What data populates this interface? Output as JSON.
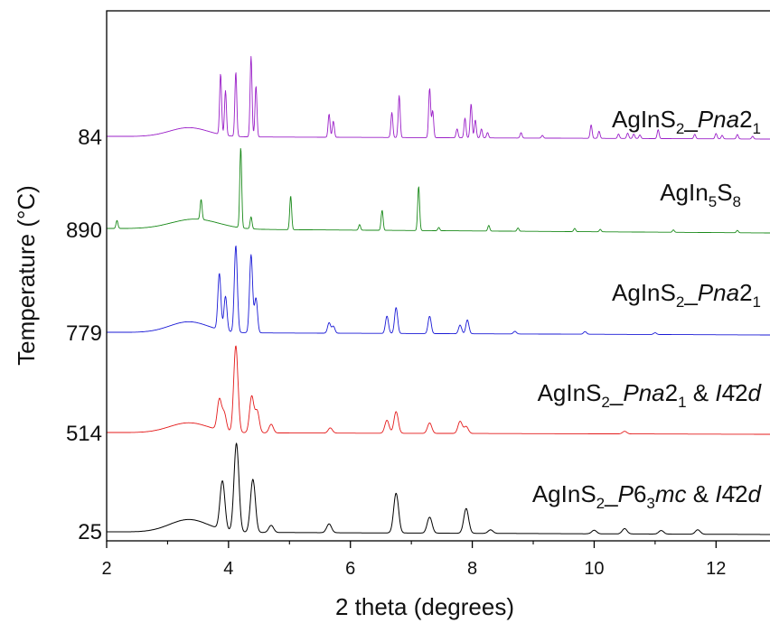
{
  "chart_data": {
    "type": "line",
    "xlabel": "2 theta (degrees)",
    "ylabel": "Temperature (°C)",
    "xlim": [
      2,
      12.9
    ],
    "x_ticks": [
      "2",
      "4",
      "6",
      "8",
      "10",
      "12"
    ],
    "x_tick_values": [
      2,
      4,
      6,
      8,
      10,
      12
    ],
    "grid": false,
    "legend": "none",
    "series": [
      {
        "name": "25",
        "y_label": "25",
        "color": "#000000",
        "label_parts": [
          {
            "t": "AgInS"
          },
          {
            "t": "2",
            "sub": true
          },
          {
            "t": "_"
          },
          {
            "t": "P",
            "i": true
          },
          {
            "t": "6"
          },
          {
            "t": "3",
            "sub": true
          },
          {
            "t": "mc",
            "i": true
          },
          {
            "t": " & "
          },
          {
            "t": "I",
            "i": true
          },
          {
            "t": "4",
            "bar": true
          },
          {
            "t": "2"
          },
          {
            "t": "d",
            "i": true
          }
        ],
        "peaks": [
          [
            3.9,
            0.55
          ],
          [
            4.13,
            1.0
          ],
          [
            4.4,
            0.6
          ],
          [
            4.7,
            0.08
          ],
          [
            5.65,
            0.1
          ],
          [
            6.75,
            0.45
          ],
          [
            7.3,
            0.18
          ],
          [
            7.9,
            0.28
          ],
          [
            8.3,
            0.04
          ],
          [
            10.0,
            0.04
          ],
          [
            10.5,
            0.06
          ],
          [
            11.1,
            0.04
          ],
          [
            11.7,
            0.05
          ]
        ]
      },
      {
        "name": "514",
        "y_label": "514",
        "color": "#e41a1a",
        "label_parts": [
          {
            "t": "AgInS"
          },
          {
            "t": "2",
            "sub": true
          },
          {
            "t": "_"
          },
          {
            "t": "Pna",
            "i": true
          },
          {
            "t": "2"
          },
          {
            "t": "1",
            "sub": true
          },
          {
            "t": " & "
          },
          {
            "t": "I",
            "i": true
          },
          {
            "t": "4",
            "bar": true
          },
          {
            "t": "2"
          },
          {
            "t": "d",
            "i": true
          }
        ],
        "peaks": [
          [
            3.85,
            0.35
          ],
          [
            3.93,
            0.2
          ],
          [
            4.12,
            1.0
          ],
          [
            4.38,
            0.42
          ],
          [
            4.47,
            0.25
          ],
          [
            4.7,
            0.1
          ],
          [
            5.67,
            0.06
          ],
          [
            6.6,
            0.15
          ],
          [
            6.75,
            0.25
          ],
          [
            7.3,
            0.12
          ],
          [
            7.8,
            0.14
          ],
          [
            7.9,
            0.08
          ],
          [
            10.5,
            0.03
          ]
        ]
      },
      {
        "name": "779",
        "y_label": "779",
        "color": "#1a1ad6",
        "label_parts": [
          {
            "t": "AgInS"
          },
          {
            "t": "2",
            "sub": true
          },
          {
            "t": "_"
          },
          {
            "t": "Pna",
            "i": true
          },
          {
            "t": "2"
          },
          {
            "t": "1",
            "sub": true
          }
        ],
        "peaks": [
          [
            3.85,
            0.65
          ],
          [
            3.95,
            0.4
          ],
          [
            4.12,
            1.0
          ],
          [
            4.37,
            0.9
          ],
          [
            4.45,
            0.4
          ],
          [
            5.65,
            0.12
          ],
          [
            5.72,
            0.08
          ],
          [
            6.6,
            0.2
          ],
          [
            6.75,
            0.3
          ],
          [
            7.3,
            0.2
          ],
          [
            7.8,
            0.1
          ],
          [
            7.92,
            0.16
          ],
          [
            8.7,
            0.03
          ],
          [
            9.85,
            0.03
          ],
          [
            11.0,
            0.02
          ]
        ]
      },
      {
        "name": "890",
        "y_label": "890",
        "color": "#1a8a1a",
        "label_parts": [
          {
            "t": "AgIn"
          },
          {
            "t": "5",
            "sub": true
          },
          {
            "t": "S"
          },
          {
            "t": "8",
            "sub": true
          }
        ],
        "peaks": [
          [
            2.17,
            0.1
          ],
          [
            3.55,
            0.25
          ],
          [
            4.2,
            1.0
          ],
          [
            4.37,
            0.15
          ],
          [
            5.02,
            0.42
          ],
          [
            6.15,
            0.07
          ],
          [
            6.52,
            0.25
          ],
          [
            7.12,
            0.55
          ],
          [
            7.45,
            0.04
          ],
          [
            8.27,
            0.07
          ],
          [
            8.75,
            0.04
          ],
          [
            9.68,
            0.04
          ],
          [
            10.1,
            0.03
          ],
          [
            11.3,
            0.03
          ],
          [
            12.35,
            0.03
          ]
        ]
      },
      {
        "name": "84",
        "y_label": "84",
        "color": "#9b20c8",
        "label_parts": [
          {
            "t": "AgInS"
          },
          {
            "t": "2",
            "sub": true
          },
          {
            "t": "_"
          },
          {
            "t": "Pna",
            "i": true
          },
          {
            "t": "2"
          },
          {
            "t": "1",
            "sub": true
          }
        ],
        "peaks": [
          [
            3.87,
            0.68
          ],
          [
            3.95,
            0.5
          ],
          [
            4.12,
            0.72
          ],
          [
            4.37,
            0.9
          ],
          [
            4.45,
            0.57
          ],
          [
            5.65,
            0.26
          ],
          [
            5.72,
            0.18
          ],
          [
            6.68,
            0.28
          ],
          [
            6.8,
            0.47
          ],
          [
            7.3,
            0.55
          ],
          [
            7.35,
            0.3
          ],
          [
            7.75,
            0.1
          ],
          [
            7.88,
            0.22
          ],
          [
            7.98,
            0.38
          ],
          [
            8.05,
            0.2
          ],
          [
            8.15,
            0.1
          ],
          [
            8.25,
            0.06
          ],
          [
            8.8,
            0.06
          ],
          [
            9.15,
            0.03
          ],
          [
            9.95,
            0.15
          ],
          [
            10.08,
            0.08
          ],
          [
            10.4,
            0.05
          ],
          [
            10.55,
            0.06
          ],
          [
            10.65,
            0.05
          ],
          [
            10.75,
            0.04
          ],
          [
            11.05,
            0.1
          ],
          [
            11.65,
            0.05
          ],
          [
            12.0,
            0.06
          ],
          [
            12.1,
            0.04
          ],
          [
            12.35,
            0.05
          ],
          [
            12.6,
            0.03
          ]
        ]
      }
    ]
  }
}
